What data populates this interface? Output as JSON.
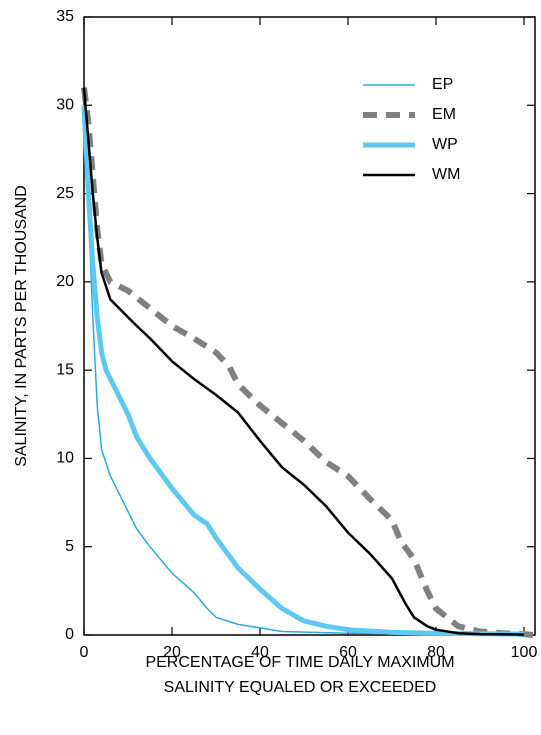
{
  "chart_data": {
    "type": "line",
    "ylabel": "SALINITY, IN PARTS PER THOUSAND",
    "xlabel": [
      "PERCENTAGE OF TIME DAILY MAXIMUM",
      "SALINITY EQUALED OR EXCEEDED"
    ],
    "xlim": [
      0,
      102.5
    ],
    "xticks": [
      0,
      20,
      40,
      60,
      80,
      100
    ],
    "ylim": [
      0,
      35
    ],
    "yticks": [
      0,
      5,
      10,
      15,
      20,
      25,
      30,
      35
    ],
    "legend": "upper-right",
    "series": [
      {
        "name": "EP",
        "color": "#29a9e0",
        "width": 1.5,
        "dash": "none",
        "x": [
          0,
          1,
          2,
          3,
          4,
          6,
          8,
          10,
          12,
          15,
          20,
          25,
          28,
          30,
          35,
          40,
          45,
          60,
          80,
          100
        ],
        "values": [
          30,
          24,
          18,
          13,
          10.5,
          9,
          8,
          7,
          6,
          5,
          3.5,
          2.4,
          1.5,
          1,
          0.6,
          0.4,
          0.2,
          0.1,
          0.05,
          0.02
        ]
      },
      {
        "name": "EM",
        "color": "#808080",
        "width": 6,
        "dash": "14 9",
        "x": [
          0,
          1,
          2,
          3,
          4,
          6,
          10,
          15,
          20,
          25,
          30,
          33,
          35,
          40,
          45,
          50,
          55,
          60,
          65,
          70,
          72,
          75,
          78,
          80,
          85,
          90,
          95,
          100,
          102
        ],
        "values": [
          31,
          29,
          26,
          23,
          21,
          20,
          19.5,
          18.5,
          17.5,
          16.8,
          16,
          15.2,
          14.2,
          13,
          12,
          11,
          9.8,
          9,
          7.7,
          6.5,
          5.3,
          4.3,
          2.5,
          1.5,
          0.5,
          0.2,
          0.1,
          0.05,
          0
        ]
      },
      {
        "name": "WP",
        "color": "#5ec8f0",
        "width": 5,
        "dash": "none",
        "x": [
          0,
          1,
          2,
          3,
          4,
          5,
          7,
          10,
          12,
          15,
          20,
          25,
          28,
          30,
          35,
          40,
          45,
          50,
          55,
          60,
          70,
          80,
          100
        ],
        "values": [
          30,
          25,
          21,
          18,
          16,
          15,
          14,
          12.5,
          11.2,
          10,
          8.3,
          6.8,
          6.3,
          5.5,
          3.8,
          2.6,
          1.5,
          0.8,
          0.5,
          0.3,
          0.15,
          0.1,
          0.05
        ]
      },
      {
        "name": "WM",
        "color": "#000000",
        "width": 2.5,
        "dash": "none",
        "x": [
          0,
          1,
          2,
          3,
          4,
          6,
          10,
          12,
          15,
          20,
          25,
          30,
          35,
          40,
          45,
          50,
          55,
          60,
          65,
          70,
          73,
          75,
          78,
          80,
          85,
          90,
          100
        ],
        "values": [
          31,
          28,
          25,
          22.5,
          20.5,
          19,
          18,
          17.5,
          16.8,
          15.5,
          14.5,
          13.6,
          12.6,
          11,
          9.5,
          8.5,
          7.3,
          5.8,
          4.6,
          3.2,
          1.8,
          1,
          0.5,
          0.3,
          0.1,
          0.05,
          0.02
        ]
      }
    ]
  }
}
